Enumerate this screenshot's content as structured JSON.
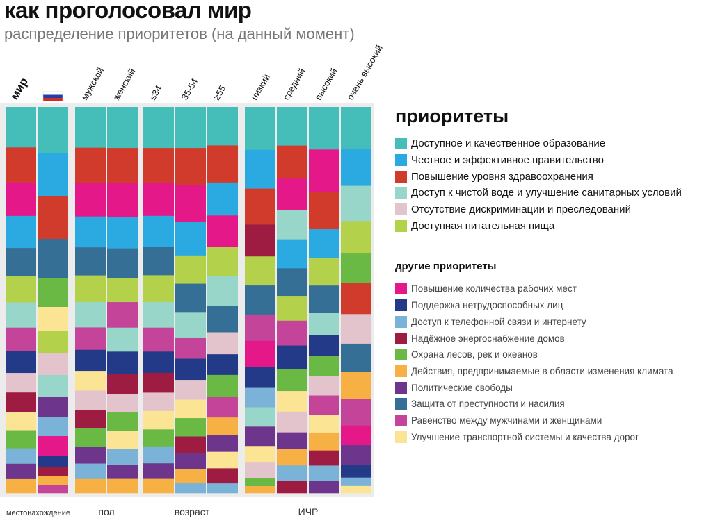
{
  "title": "как проголосовал мир",
  "subtitle": "распределение приоритетов (на данный момент)",
  "chart_data": {
    "type": "stacked-bar",
    "unit": "share of votes (column height normalised)",
    "categories": [
      {
        "key": "edu",
        "label": "Доступное и качественное образование",
        "color": "#45bdb9",
        "group": "main"
      },
      {
        "key": "gov",
        "label": "Честное и эффективное правительство",
        "color": "#2ba9e1",
        "group": "main"
      },
      {
        "key": "health",
        "label": "Повышение уровня здравоохранения",
        "color": "#d13b2c",
        "group": "main"
      },
      {
        "key": "water",
        "label": "Доступ к чистой воде и улучшение санитарных условий",
        "color": "#97d6c8",
        "group": "main"
      },
      {
        "key": "discr",
        "label": "Отсутствие дискриминации и преследований",
        "color": "#e3c4cc",
        "group": "main"
      },
      {
        "key": "food",
        "label": "Доступная питательная пища",
        "color": "#b3d14a",
        "group": "main"
      },
      {
        "key": "jobs",
        "label": "Повышение количества рабочих мест",
        "color": "#e5188a",
        "group": "other"
      },
      {
        "key": "support",
        "label": "Поддержка нетрудоспособных лиц",
        "color": "#223a87",
        "group": "other"
      },
      {
        "key": "phone",
        "label": "Доступ к телефонной связи и интернету",
        "color": "#7bb3d8",
        "group": "other"
      },
      {
        "key": "energy",
        "label": "Надёжное энергоснабжение домов",
        "color": "#9e1b42",
        "group": "other"
      },
      {
        "key": "forest",
        "label": "Охрана лесов, рек и океанов",
        "color": "#6ab945",
        "group": "other"
      },
      {
        "key": "climate",
        "label": "Действия, предпринимаемые в области изменения климата",
        "color": "#f7b043",
        "group": "other"
      },
      {
        "key": "political",
        "label": "Политические свободы",
        "color": "#6e358c",
        "group": "other"
      },
      {
        "key": "crime",
        "label": "Защита от преступности и насилия",
        "color": "#356f95",
        "group": "other"
      },
      {
        "key": "gender",
        "label": "Равенство между мужчинами и женщинами",
        "color": "#c44499",
        "group": "other"
      },
      {
        "key": "transport",
        "label": "Улучшение транспортной системы и качества дорог",
        "color": "#fbe493",
        "group": "other"
      }
    ],
    "groups": [
      {
        "label": "местонахождение",
        "small": true
      },
      {
        "label": "пол"
      },
      {
        "label": "возраст"
      },
      {
        "label": "ИЧР"
      }
    ],
    "columns": [
      {
        "label": "мир",
        "bold": true,
        "group": 0,
        "segments": [
          [
            "edu",
            58
          ],
          [
            "health",
            50
          ],
          [
            "jobs",
            48
          ],
          [
            "gov",
            46
          ],
          [
            "crime",
            40
          ],
          [
            "food",
            38
          ],
          [
            "water",
            36
          ],
          [
            "gender",
            34
          ],
          [
            "support",
            31
          ],
          [
            "discr",
            28
          ],
          [
            "energy",
            28
          ],
          [
            "transport",
            26
          ],
          [
            "forest",
            26
          ],
          [
            "phone",
            22
          ],
          [
            "political",
            22
          ],
          [
            "climate",
            20
          ]
        ]
      },
      {
        "label": "",
        "flag": "ru",
        "group": 0,
        "segments": [
          [
            "edu",
            66
          ],
          [
            "gov",
            62
          ],
          [
            "health",
            62
          ],
          [
            "crime",
            56
          ],
          [
            "forest",
            42
          ],
          [
            "transport",
            34
          ],
          [
            "food",
            32
          ],
          [
            "discr",
            32
          ],
          [
            "water",
            32
          ],
          [
            "political",
            28
          ],
          [
            "phone",
            28
          ],
          [
            "jobs",
            28
          ],
          [
            "support",
            16
          ],
          [
            "energy",
            14
          ],
          [
            "climate",
            12
          ],
          [
            "gender",
            12
          ]
        ]
      },
      {
        "label": "мужской",
        "group": 1,
        "segments": [
          [
            "edu",
            58
          ],
          [
            "health",
            50
          ],
          [
            "jobs",
            48
          ],
          [
            "gov",
            44
          ],
          [
            "crime",
            40
          ],
          [
            "food",
            38
          ],
          [
            "water",
            36
          ],
          [
            "gender",
            32
          ],
          [
            "support",
            30
          ],
          [
            "transport",
            28
          ],
          [
            "discr",
            28
          ],
          [
            "energy",
            26
          ],
          [
            "forest",
            26
          ],
          [
            "political",
            24
          ],
          [
            "phone",
            22
          ],
          [
            "climate",
            20
          ]
        ]
      },
      {
        "label": "женский",
        "group": 1,
        "segments": [
          [
            "edu",
            58
          ],
          [
            "health",
            50
          ],
          [
            "jobs",
            48
          ],
          [
            "gov",
            44
          ],
          [
            "crime",
            42
          ],
          [
            "food",
            34
          ],
          [
            "gender",
            36
          ],
          [
            "water",
            34
          ],
          [
            "support",
            32
          ],
          [
            "energy",
            28
          ],
          [
            "discr",
            26
          ],
          [
            "forest",
            26
          ],
          [
            "transport",
            26
          ],
          [
            "phone",
            22
          ],
          [
            "political",
            20
          ],
          [
            "climate",
            20
          ]
        ]
      },
      {
        "label": "≤34",
        "group": 2,
        "segments": [
          [
            "edu",
            58
          ],
          [
            "health",
            50
          ],
          [
            "jobs",
            46
          ],
          [
            "gov",
            44
          ],
          [
            "crime",
            40
          ],
          [
            "food",
            38
          ],
          [
            "water",
            36
          ],
          [
            "gender",
            34
          ],
          [
            "support",
            30
          ],
          [
            "energy",
            28
          ],
          [
            "discr",
            26
          ],
          [
            "transport",
            26
          ],
          [
            "forest",
            24
          ],
          [
            "phone",
            24
          ],
          [
            "political",
            22
          ],
          [
            "climate",
            20
          ]
        ]
      },
      {
        "label": "35-54",
        "group": 2,
        "segments": [
          [
            "edu",
            58
          ],
          [
            "health",
            52
          ],
          [
            "jobs",
            52
          ],
          [
            "gov",
            48
          ],
          [
            "food",
            40
          ],
          [
            "crime",
            40
          ],
          [
            "water",
            36
          ],
          [
            "gender",
            30
          ],
          [
            "support",
            30
          ],
          [
            "discr",
            28
          ],
          [
            "transport",
            26
          ],
          [
            "forest",
            26
          ],
          [
            "energy",
            24
          ],
          [
            "political",
            22
          ],
          [
            "climate",
            20
          ],
          [
            "phone",
            14
          ]
        ]
      },
      {
        "label": "≥55",
        "group": 2,
        "segments": [
          [
            "edu",
            56
          ],
          [
            "health",
            54
          ],
          [
            "gov",
            48
          ],
          [
            "jobs",
            46
          ],
          [
            "food",
            42
          ],
          [
            "water",
            44
          ],
          [
            "crime",
            38
          ],
          [
            "discr",
            32
          ],
          [
            "support",
            30
          ],
          [
            "forest",
            32
          ],
          [
            "gender",
            30
          ],
          [
            "climate",
            26
          ],
          [
            "political",
            24
          ],
          [
            "transport",
            24
          ],
          [
            "energy",
            22
          ],
          [
            "phone",
            14
          ]
        ]
      },
      {
        "label": "низкий",
        "group": 3,
        "segments": [
          [
            "edu",
            62
          ],
          [
            "gov",
            56
          ],
          [
            "health",
            52
          ],
          [
            "energy",
            46
          ],
          [
            "food",
            42
          ],
          [
            "crime",
            42
          ],
          [
            "gender",
            38
          ],
          [
            "jobs",
            38
          ],
          [
            "support",
            30
          ],
          [
            "phone",
            28
          ],
          [
            "water",
            28
          ],
          [
            "political",
            28
          ],
          [
            "transport",
            24
          ],
          [
            "discr",
            22
          ],
          [
            "forest",
            12
          ],
          [
            "climate",
            10
          ]
        ]
      },
      {
        "label": "средний",
        "group": 3,
        "segments": [
          [
            "edu",
            56
          ],
          [
            "health",
            48
          ],
          [
            "jobs",
            46
          ],
          [
            "water",
            42
          ],
          [
            "gov",
            42
          ],
          [
            "crime",
            40
          ],
          [
            "food",
            36
          ],
          [
            "gender",
            36
          ],
          [
            "support",
            34
          ],
          [
            "forest",
            32
          ],
          [
            "transport",
            30
          ],
          [
            "discr",
            30
          ],
          [
            "political",
            24
          ],
          [
            "climate",
            24
          ],
          [
            "phone",
            22
          ],
          [
            "energy",
            18
          ]
        ]
      },
      {
        "label": "высокий",
        "group": 3,
        "segments": [
          [
            "edu",
            62
          ],
          [
            "jobs",
            62
          ],
          [
            "health",
            54
          ],
          [
            "gov",
            42
          ],
          [
            "food",
            40
          ],
          [
            "crime",
            40
          ],
          [
            "water",
            32
          ],
          [
            "support",
            30
          ],
          [
            "forest",
            30
          ],
          [
            "discr",
            28
          ],
          [
            "gender",
            28
          ],
          [
            "transport",
            26
          ],
          [
            "climate",
            26
          ],
          [
            "energy",
            22
          ],
          [
            "phone",
            22
          ],
          [
            "political",
            18
          ]
        ]
      },
      {
        "label": "очень высокий",
        "group": 3,
        "segments": [
          [
            "edu",
            60
          ],
          [
            "gov",
            52
          ],
          [
            "water",
            50
          ],
          [
            "food",
            46
          ],
          [
            "forest",
            42
          ],
          [
            "health",
            44
          ],
          [
            "discr",
            42
          ],
          [
            "crime",
            40
          ],
          [
            "climate",
            38
          ],
          [
            "gender",
            38
          ],
          [
            "jobs",
            28
          ],
          [
            "political",
            28
          ],
          [
            "support",
            18
          ],
          [
            "phone",
            12
          ],
          [
            "transport",
            10
          ]
        ]
      }
    ]
  },
  "legend": {
    "title": "приоритеты",
    "other_title": "другие приоритеты"
  }
}
